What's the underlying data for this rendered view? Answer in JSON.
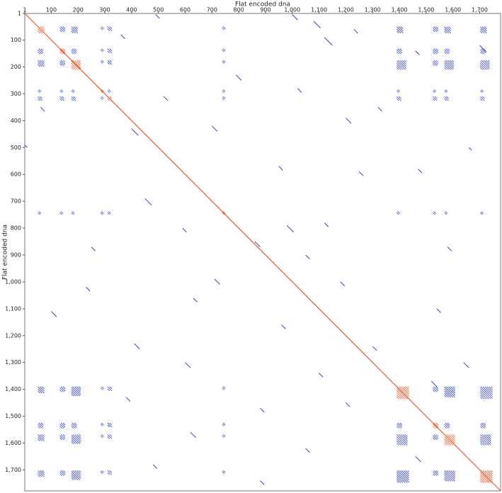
{
  "chart_data": {
    "type": "dotplot",
    "x_label": "Flat encoded dna",
    "y_label": "Flat encoded dna",
    "xlim": [
      1,
      1778
    ],
    "ylim": [
      1,
      1778
    ],
    "xticks": [
      1,
      100,
      200,
      300,
      400,
      500,
      600,
      700,
      800,
      900,
      {
        "value": 1000,
        "label": "1,000"
      },
      {
        "value": 1100,
        "label": "1,100"
      },
      {
        "value": 1200,
        "label": "1,200"
      },
      {
        "value": 1300,
        "label": "1,300"
      },
      {
        "value": 1400,
        "label": "1,400"
      },
      {
        "value": 1500,
        "label": "1,500"
      },
      {
        "value": 1600,
        "label": "1,600"
      },
      {
        "value": 1700,
        "label": "1,700"
      }
    ],
    "yticks": [
      1,
      100,
      200,
      300,
      400,
      500,
      600,
      700,
      800,
      900,
      {
        "value": 1000,
        "label": "1,000"
      },
      {
        "value": 1100,
        "label": "1,100"
      },
      {
        "value": 1200,
        "label": "1,200"
      },
      {
        "value": 1300,
        "label": "1,300"
      },
      {
        "value": 1400,
        "label": "1,400"
      },
      {
        "value": 1500,
        "label": "1,500"
      },
      {
        "value": 1600,
        "label": "1,600"
      },
      {
        "value": 1700,
        "label": "1,700"
      }
    ],
    "segment_color": "#3344cc",
    "diagonal_color": "#f05a28",
    "repeats": [
      {
        "start": 50,
        "length": 24
      },
      {
        "start": 132,
        "length": 20
      },
      {
        "start": 175,
        "length": 35
      },
      {
        "start": 284,
        "length": 12
      },
      {
        "start": 310,
        "length": 16
      },
      {
        "start": 738,
        "length": 12
      },
      {
        "start": 1390,
        "length": 46
      },
      {
        "start": 1525,
        "length": 20
      },
      {
        "start": 1568,
        "length": 40
      },
      {
        "start": 1702,
        "length": 46
      }
    ],
    "segments": [
      {
        "x": 490,
        "y": 5,
        "len": 15
      },
      {
        "x": 1000,
        "y": 5,
        "len": 20
      },
      {
        "x": 1080,
        "y": 30,
        "len": 25
      },
      {
        "x": 1120,
        "y": 90,
        "len": 30
      },
      {
        "x": 1230,
        "y": 60,
        "len": 15
      },
      {
        "x": 1020,
        "y": 280,
        "len": 15
      },
      {
        "x": 520,
        "y": 310,
        "len": 15
      },
      {
        "x": 790,
        "y": 230,
        "len": 20
      },
      {
        "x": 1200,
        "y": 390,
        "len": 20
      },
      {
        "x": 1320,
        "y": 350,
        "len": 15
      },
      {
        "x": 400,
        "y": 430,
        "len": 25
      },
      {
        "x": 700,
        "y": 420,
        "len": 20
      },
      {
        "x": 0,
        "y": 490,
        "len": 10
      },
      {
        "x": 1660,
        "y": 500,
        "len": 10
      },
      {
        "x": 950,
        "y": 570,
        "len": 15
      },
      {
        "x": 1250,
        "y": 590,
        "len": 15
      },
      {
        "x": 1470,
        "y": 580,
        "len": 15
      },
      {
        "x": 450,
        "y": 690,
        "len": 25
      },
      {
        "x": 980,
        "y": 790,
        "len": 25
      },
      {
        "x": 1120,
        "y": 780,
        "len": 15
      },
      {
        "x": 590,
        "y": 800,
        "len": 15
      },
      {
        "x": 860,
        "y": 850,
        "len": 20
      },
      {
        "x": 250,
        "y": 870,
        "len": 15
      },
      {
        "x": 1050,
        "y": 900,
        "len": 15
      },
      {
        "x": 1580,
        "y": 870,
        "len": 15
      },
      {
        "x": 710,
        "y": 990,
        "len": 20
      },
      {
        "x": 230,
        "y": 1020,
        "len": 15
      },
      {
        "x": 100,
        "y": 1110,
        "len": 20
      },
      {
        "x": 630,
        "y": 1060,
        "len": 15
      },
      {
        "x": 1540,
        "y": 1100,
        "len": 15
      },
      {
        "x": 410,
        "y": 1230,
        "len": 20
      },
      {
        "x": 960,
        "y": 1160,
        "len": 15
      },
      {
        "x": 1300,
        "y": 1240,
        "len": 15
      },
      {
        "x": 600,
        "y": 1300,
        "len": 20
      },
      {
        "x": 1100,
        "y": 1340,
        "len": 15
      },
      {
        "x": 1520,
        "y": 1370,
        "len": 20
      },
      {
        "x": 380,
        "y": 1430,
        "len": 15
      },
      {
        "x": 880,
        "y": 1470,
        "len": 15
      },
      {
        "x": 1200,
        "y": 1450,
        "len": 15
      },
      {
        "x": 620,
        "y": 1560,
        "len": 20
      },
      {
        "x": 1050,
        "y": 1620,
        "len": 15
      },
      {
        "x": 480,
        "y": 1680,
        "len": 15
      },
      {
        "x": 1460,
        "y": 1650,
        "len": 20
      },
      {
        "x": 880,
        "y": 1740,
        "len": 15
      },
      {
        "x": 1640,
        "y": 1300,
        "len": 20
      },
      {
        "x": 60,
        "y": 350,
        "len": 15
      },
      {
        "x": 360,
        "y": 80,
        "len": 15
      },
      {
        "x": 1460,
        "y": 140,
        "len": 15
      },
      {
        "x": 1700,
        "y": 120,
        "len": 25
      },
      {
        "x": 1180,
        "y": 1000,
        "len": 15
      }
    ]
  }
}
